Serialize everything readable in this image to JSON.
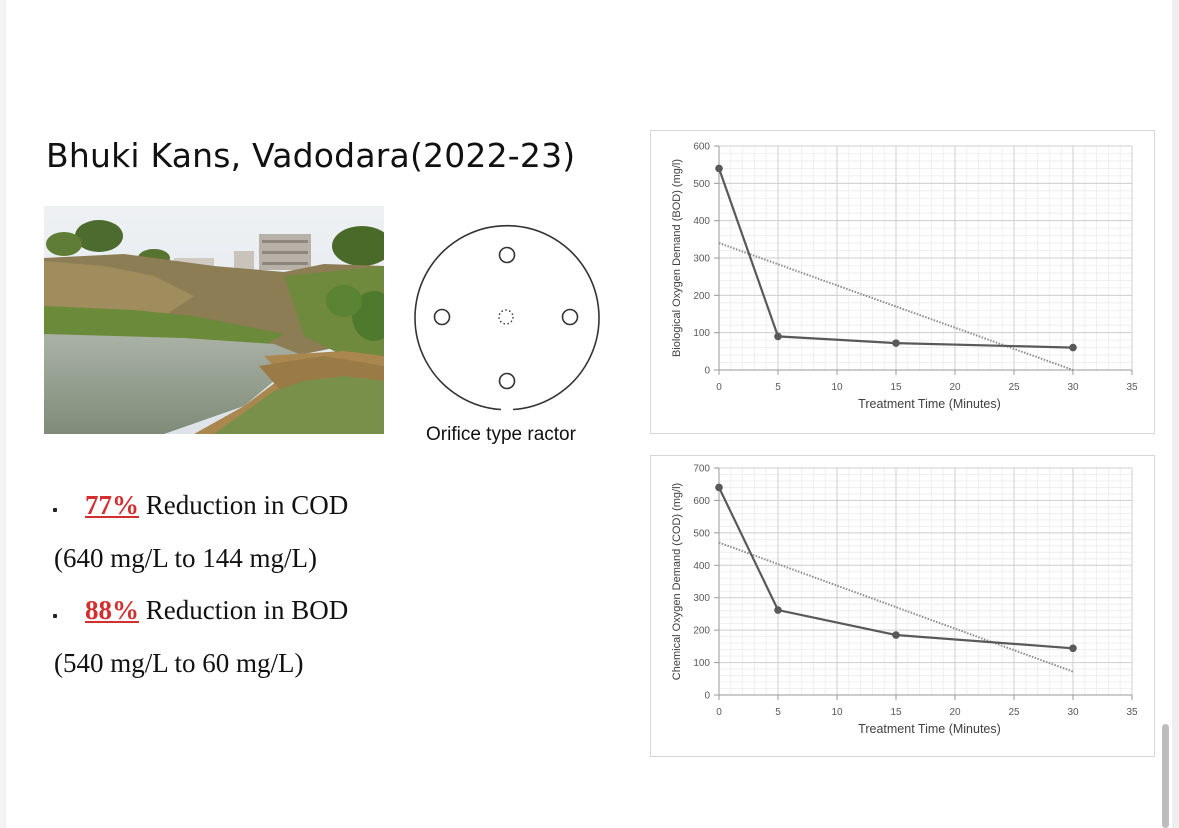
{
  "slide": {
    "title": "Bhuki Kans, Vadodara(2022-23)",
    "reactor_caption": "Orifice type ractor",
    "bullets": [
      {
        "percent": "77%",
        "text": " Reduction in COD",
        "detail": "(640 mg/L to 144 mg/L)"
      },
      {
        "percent": "88%",
        "text": " Reduction in BOD",
        "detail": "(540 mg/L to 60 mg/L)"
      }
    ],
    "accent_color": "#d32f2f"
  },
  "chart_data": [
    {
      "type": "line",
      "xlabel": "Treatment Time (Minutes)",
      "ylabel": "Biological Oxygen Demand (BOD) (mg/l)",
      "xlim": [
        0,
        35
      ],
      "ylim": [
        0,
        600
      ],
      "x_ticks": [
        0,
        5,
        10,
        15,
        20,
        25,
        30,
        35
      ],
      "y_ticks": [
        0,
        100,
        200,
        300,
        400,
        500,
        600
      ],
      "x": [
        0,
        5,
        15,
        30
      ],
      "series": [
        {
          "values": [
            540,
            90,
            72,
            60
          ],
          "color": "#595959",
          "style": "solid"
        }
      ],
      "trendline": {
        "from": [
          0,
          340
        ],
        "to": [
          30,
          0
        ],
        "style": "dotted"
      },
      "grid": true
    },
    {
      "type": "line",
      "xlabel": "Treatment Time (Minutes)",
      "ylabel": "Chemical Oxygen Demand (COD) (mg/l)",
      "xlim": [
        0,
        35
      ],
      "ylim": [
        0,
        700
      ],
      "x_ticks": [
        0,
        5,
        10,
        15,
        20,
        25,
        30,
        35
      ],
      "y_ticks": [
        0,
        100,
        200,
        300,
        400,
        500,
        600,
        700
      ],
      "x": [
        0,
        5,
        15,
        30
      ],
      "series": [
        {
          "values": [
            640,
            262,
            185,
            144
          ],
          "color": "#595959",
          "style": "solid"
        }
      ],
      "trendline": {
        "from": [
          0,
          470
        ],
        "to": [
          30,
          72
        ],
        "style": "dotted"
      },
      "grid": true
    }
  ]
}
